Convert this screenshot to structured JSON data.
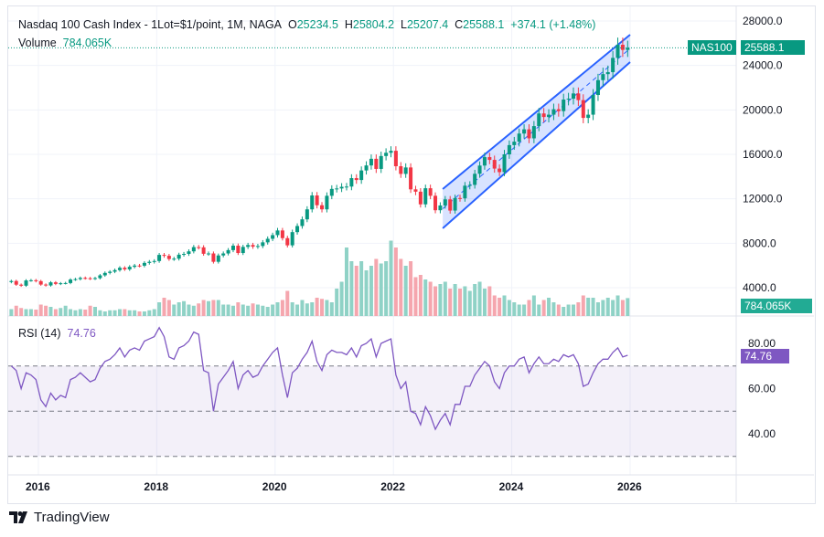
{
  "header": {
    "symbol_desc": "Nasdaq 100 Cash Index - 1Lot=$1/point, 1M, NAGA",
    "open_label": "O",
    "open": "25234.5",
    "high_label": "H",
    "high": "25804.2",
    "low_label": "L",
    "low": "25207.4",
    "close_label": "C",
    "close": "25588.1",
    "change": "+374.1 (+1.48%)",
    "volume_label": "Volume",
    "volume": "784.065K"
  },
  "badges": {
    "symbol": "NAS100",
    "price": "25588.1",
    "volume": "784.065K",
    "rsi": "74.76"
  },
  "rsi_legend": {
    "label": "RSI (14)",
    "value": "74.76"
  },
  "footer": {
    "brand": "TradingView"
  },
  "colors": {
    "up": "#089981",
    "down": "#f23645",
    "up_vol": "#8fd2c6",
    "down_vol": "#f5a6ae",
    "channel": "#2962ff",
    "rsi": "#7e57c2"
  },
  "chart_data": [
    {
      "type": "candlestick",
      "title": "Nasdaq 100 Cash Index",
      "start": "2015-07",
      "interval": "1M",
      "closes": [
        4600,
        4270,
        4180,
        4650,
        4670,
        4590,
        4280,
        4200,
        4480,
        4340,
        4400,
        4420,
        4730,
        4770,
        4880,
        4850,
        4810,
        4860,
        5110,
        5330,
        5440,
        5580,
        5790,
        5650,
        5880,
        5990,
        5980,
        6230,
        6330,
        6400,
        6950,
        6870,
        6580,
        6610,
        6970,
        7040,
        7270,
        7650,
        7630,
        7050,
        7080,
        6330,
        6900,
        7080,
        7380,
        7780,
        7120,
        7670,
        7840,
        7690,
        7750,
        8080,
        8400,
        8730,
        9150,
        8460,
        7810,
        9000,
        9550,
        10150,
        11050,
        12300,
        11420,
        11050,
        12270,
        12890,
        12930,
        13080,
        13100,
        13860,
        13690,
        14550,
        15000,
        15600,
        14690,
        15850,
        16140,
        16320,
        14930,
        14240,
        14820,
        12850,
        12640,
        11500,
        12950,
        12270,
        10970,
        11400,
        11950,
        10940,
        12070,
        12040,
        13180,
        13250,
        14250,
        14990,
        15750,
        15500,
        14720,
        14400,
        16000,
        16830,
        17140,
        17870,
        18250,
        17440,
        18540,
        19680,
        19360,
        19570,
        20060,
        19890,
        20930,
        21010,
        21480,
        20880,
        19280,
        19570,
        21340,
        22680,
        23220,
        23400,
        24680,
        25860,
        25400,
        25588.1
      ],
      "volumes_k": [
        300,
        450,
        350,
        300,
        300,
        280,
        500,
        450,
        400,
        300,
        350,
        450,
        300,
        250,
        300,
        280,
        450,
        400,
        250,
        200,
        250,
        250,
        300,
        300,
        250,
        250,
        200,
        200,
        250,
        300,
        600,
        800,
        700,
        500,
        600,
        650,
        500,
        450,
        550,
        700,
        650,
        700,
        700,
        500,
        500,
        450,
        600,
        500,
        450,
        550,
        500,
        450,
        400,
        500,
        600,
        700,
        1100,
        600,
        500,
        700,
        550,
        600,
        800,
        750,
        700,
        600,
        1200,
        1500,
        3000,
        2400,
        2200,
        2400,
        2000,
        2200,
        2500,
        2300,
        2400,
        3300,
        3000,
        2500,
        2200,
        2400,
        1700,
        1800,
        1600,
        1500,
        1300,
        1400,
        1500,
        1200,
        1400,
        1200,
        1300,
        1100,
        1400,
        1500,
        1200,
        1300,
        900,
        800,
        900,
        700,
        600,
        500,
        500,
        700,
        900,
        500,
        700,
        800,
        600,
        500,
        400,
        500,
        500,
        600,
        900,
        800,
        800,
        600,
        700,
        800,
        700,
        900,
        700,
        784.065
      ],
      "y_ticks": [
        "28000.0",
        "24000.0",
        "20000.0",
        "16000.0",
        "12000.0",
        "8000.0",
        "4000.0"
      ],
      "ylim": [
        4000,
        28000
      ],
      "x_ticks": [
        "2016",
        "2018",
        "2020",
        "2022",
        "2024",
        "2026"
      ],
      "channel": {
        "start": "2022-11",
        "end": "2026-01",
        "upper": [
          12880,
          26770
        ],
        "lower": [
          9340,
          24300
        ]
      }
    },
    {
      "type": "line",
      "title": "RSI (14)",
      "ylim": [
        30,
        85
      ],
      "y_ticks": [
        "80.00",
        "60.00",
        "40.00"
      ],
      "bands": [
        70,
        50,
        30
      ],
      "values": [
        70,
        68,
        60,
        67,
        66,
        64,
        55,
        52,
        58,
        55,
        57,
        56,
        64,
        65,
        67,
        65,
        63,
        64,
        69,
        72,
        73,
        75,
        78,
        74,
        77,
        78,
        77,
        81,
        82,
        83,
        87,
        83,
        74,
        73,
        78,
        79,
        81,
        85,
        84,
        68,
        67,
        50,
        62,
        65,
        68,
        72,
        60,
        66,
        68,
        65,
        66,
        70,
        73,
        76,
        78,
        66,
        56,
        67,
        69,
        73,
        76,
        81,
        72,
        68,
        75,
        77,
        76,
        76,
        75,
        78,
        74,
        79,
        80,
        82,
        74,
        80,
        81,
        82,
        66,
        60,
        63,
        50,
        49,
        44,
        52,
        48,
        42,
        46,
        49,
        44,
        53,
        53,
        61,
        61,
        66,
        69,
        72,
        70,
        63,
        60,
        67,
        70,
        70,
        73,
        74,
        67,
        71,
        74,
        71,
        71,
        73,
        72,
        75,
        74,
        75,
        71,
        61,
        62,
        67,
        71,
        73,
        73,
        76,
        78,
        74,
        74.76
      ]
    }
  ]
}
